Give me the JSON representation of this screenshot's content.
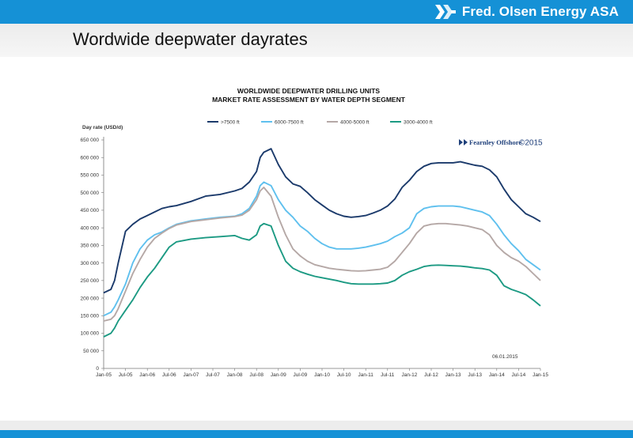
{
  "header": {
    "company": "Fred. Olsen Energy ASA",
    "logo_icon": "fred-olsen-logo-icon",
    "bar_color": "#1591d6"
  },
  "slide": {
    "title": "Wordwide deepwater dayrates"
  },
  "chart_data": {
    "type": "line",
    "title": "WORLDWIDE DEEPWATER DRILLING UNITS",
    "subtitle": "MARKET RATE ASSESSMENT BY WATER DEPTH SEGMENT",
    "ylabel": "Day rate (USD/d)",
    "xlabel": "",
    "ylim": [
      0,
      650000
    ],
    "yticks": [
      0,
      50000,
      100000,
      150000,
      200000,
      250000,
      300000,
      350000,
      400000,
      450000,
      500000,
      550000,
      600000,
      650000
    ],
    "ytick_labels": [
      "0",
      "50 000",
      "100 000",
      "150 000",
      "200 000",
      "250 000",
      "300 000",
      "350 000",
      "400 000",
      "450 000",
      "500 000",
      "550 000",
      "600 000",
      "650 000"
    ],
    "xlim": [
      0,
      120
    ],
    "xtick_labels": [
      "Jan-05",
      "Jul-05",
      "Jan-06",
      "Jul-06",
      "Jan-07",
      "Jul-07",
      "Jan-08",
      "Jul-08",
      "Jan-09",
      "Jul-09",
      "Jan-10",
      "Jul-10",
      "Jan-11",
      "Jul-11",
      "Jan-12",
      "Jul-12",
      "Jan-13",
      "Jul-13",
      "Jan-14",
      "Jul-14",
      "Jan-15"
    ],
    "legend_position": "top",
    "grid": false,
    "source_label": "Fearnley Offshore",
    "source_year": "©2015",
    "date_note": "06.01.2015",
    "x": [
      0,
      2,
      3,
      4,
      6,
      8,
      10,
      12,
      14,
      16,
      18,
      20,
      24,
      28,
      32,
      36,
      38,
      40,
      42,
      43,
      44,
      46,
      48,
      50,
      52,
      54,
      56,
      58,
      60,
      62,
      64,
      66,
      68,
      70,
      72,
      74,
      76,
      78,
      80,
      82,
      84,
      86,
      88,
      90,
      92,
      94,
      96,
      98,
      100,
      102,
      104,
      106,
      108,
      110,
      112,
      114,
      116,
      118,
      120
    ],
    "series": [
      {
        "name": ">7500 ft",
        "color": "#1b3a6b",
        "values": [
          215000,
          225000,
          250000,
          300000,
          390000,
          410000,
          425000,
          435000,
          445000,
          455000,
          460000,
          463000,
          475000,
          490000,
          495000,
          505000,
          512000,
          530000,
          560000,
          600000,
          615000,
          625000,
          580000,
          545000,
          525000,
          518000,
          500000,
          480000,
          465000,
          450000,
          440000,
          433000,
          430000,
          432000,
          435000,
          442000,
          450000,
          462000,
          482000,
          515000,
          535000,
          560000,
          575000,
          583000,
          585000,
          585000,
          585000,
          588000,
          583000,
          578000,
          575000,
          565000,
          545000,
          510000,
          480000,
          460000,
          440000,
          430000,
          418000
        ]
      },
      {
        "name": "6000-7500 ft",
        "color": "#5fc0ee",
        "values": [
          150000,
          160000,
          175000,
          195000,
          240000,
          300000,
          340000,
          365000,
          380000,
          388000,
          400000,
          410000,
          420000,
          425000,
          430000,
          433000,
          440000,
          455000,
          490000,
          520000,
          530000,
          520000,
          480000,
          450000,
          430000,
          405000,
          390000,
          370000,
          355000,
          345000,
          340000,
          340000,
          340000,
          342000,
          345000,
          350000,
          355000,
          362000,
          375000,
          385000,
          400000,
          440000,
          455000,
          460000,
          462000,
          462000,
          462000,
          460000,
          455000,
          450000,
          445000,
          435000,
          410000,
          380000,
          355000,
          335000,
          310000,
          295000,
          280000
        ]
      },
      {
        "name": "4000-5000 ft",
        "color": "#b5a8a6",
        "values": [
          135000,
          140000,
          150000,
          170000,
          220000,
          270000,
          310000,
          345000,
          370000,
          385000,
          398000,
          408000,
          418000,
          423000,
          428000,
          432000,
          436000,
          450000,
          480000,
          505000,
          515000,
          490000,
          430000,
          380000,
          340000,
          320000,
          305000,
          295000,
          290000,
          285000,
          282000,
          280000,
          278000,
          277000,
          278000,
          280000,
          282000,
          288000,
          305000,
          330000,
          355000,
          385000,
          405000,
          410000,
          412000,
          412000,
          410000,
          408000,
          405000,
          400000,
          395000,
          380000,
          350000,
          330000,
          315000,
          305000,
          290000,
          270000,
          250000
        ]
      },
      {
        "name": "3000-4000 ft",
        "color": "#1c9a83",
        "values": [
          90000,
          100000,
          115000,
          135000,
          165000,
          195000,
          230000,
          260000,
          285000,
          315000,
          345000,
          360000,
          368000,
          372000,
          375000,
          378000,
          370000,
          365000,
          380000,
          405000,
          412000,
          405000,
          350000,
          305000,
          285000,
          275000,
          268000,
          262000,
          258000,
          254000,
          250000,
          245000,
          241000,
          240000,
          240000,
          240000,
          241000,
          243000,
          250000,
          265000,
          275000,
          282000,
          290000,
          293000,
          294000,
          293000,
          292000,
          291000,
          289000,
          286000,
          284000,
          280000,
          265000,
          235000,
          225000,
          218000,
          210000,
          195000,
          178000
        ]
      }
    ]
  }
}
